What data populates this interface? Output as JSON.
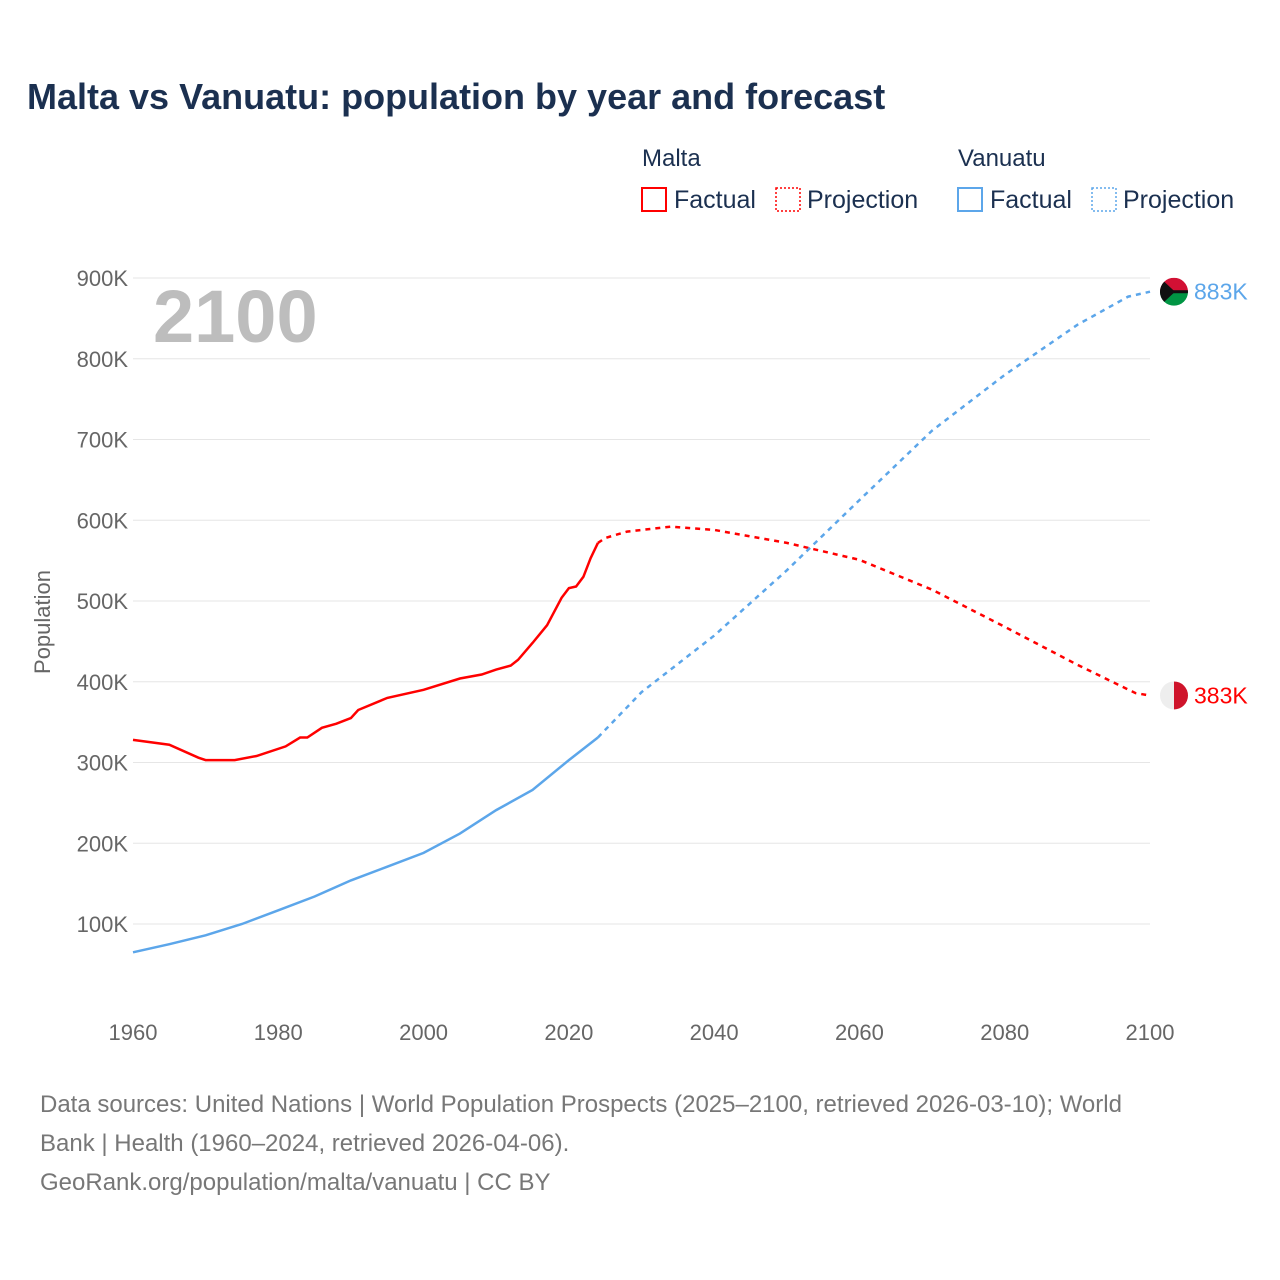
{
  "chart_data": {
    "type": "line",
    "title": "Malta vs Vanuatu: population by year and forecast",
    "ylabel": "Population",
    "xlabel": "",
    "xlim": [
      1960,
      2100
    ],
    "ylim": [
      0,
      900000
    ],
    "x_ticks": [
      "1960",
      "1980",
      "2000",
      "2020",
      "2040",
      "2060",
      "2080",
      "2100"
    ],
    "y_ticks": [
      "100K",
      "200K",
      "300K",
      "400K",
      "500K",
      "600K",
      "700K",
      "800K",
      "900K"
    ],
    "grid": true,
    "year_label": "2100",
    "legend": {
      "placement": "top-right",
      "groups": [
        {
          "name": "Malta",
          "items": [
            "Factual",
            "Projection"
          ]
        },
        {
          "name": "Vanuatu",
          "items": [
            "Factual",
            "Projection"
          ]
        }
      ]
    },
    "series": [
      {
        "name": "Malta",
        "color": "#ff0000",
        "end_label": "383K",
        "factual": [
          [
            1960,
            328000
          ],
          [
            1965,
            322000
          ],
          [
            1969,
            306000
          ],
          [
            1970,
            303000
          ],
          [
            1974,
            303000
          ],
          [
            1977,
            308000
          ],
          [
            1981,
            320000
          ],
          [
            1983,
            331000
          ],
          [
            1984,
            331000
          ],
          [
            1986,
            343000
          ],
          [
            1988,
            348000
          ],
          [
            1990,
            355000
          ],
          [
            1991,
            365000
          ],
          [
            1995,
            380000
          ],
          [
            2000,
            390000
          ],
          [
            2005,
            404000
          ],
          [
            2008,
            409000
          ],
          [
            2010,
            415000
          ],
          [
            2012,
            420000
          ],
          [
            2013,
            427000
          ],
          [
            2015,
            448000
          ],
          [
            2017,
            470000
          ],
          [
            2019,
            504000
          ],
          [
            2020,
            516000
          ],
          [
            2021,
            518000
          ],
          [
            2022,
            530000
          ],
          [
            2023,
            553000
          ],
          [
            2024,
            572000
          ]
        ],
        "projection": [
          [
            2024,
            572000
          ],
          [
            2025,
            578000
          ],
          [
            2028,
            586000
          ],
          [
            2034,
            592000
          ],
          [
            2040,
            588000
          ],
          [
            2050,
            572000
          ],
          [
            2060,
            551000
          ],
          [
            2070,
            514000
          ],
          [
            2080,
            468000
          ],
          [
            2090,
            421000
          ],
          [
            2098,
            386000
          ],
          [
            2100,
            383000
          ]
        ]
      },
      {
        "name": "Vanuatu",
        "color": "#5ca6ea",
        "end_label": "883K",
        "factual": [
          [
            1960,
            65000
          ],
          [
            1965,
            75000
          ],
          [
            1970,
            86000
          ],
          [
            1975,
            100000
          ],
          [
            1980,
            117000
          ],
          [
            1985,
            134000
          ],
          [
            1990,
            154000
          ],
          [
            1995,
            171000
          ],
          [
            2000,
            188000
          ],
          [
            2005,
            212000
          ],
          [
            2010,
            241000
          ],
          [
            2015,
            266000
          ],
          [
            2020,
            303000
          ],
          [
            2024,
            331000
          ]
        ],
        "projection": [
          [
            2024,
            331000
          ],
          [
            2030,
            387000
          ],
          [
            2040,
            457000
          ],
          [
            2050,
            538000
          ],
          [
            2060,
            625000
          ],
          [
            2070,
            711000
          ],
          [
            2080,
            780000
          ],
          [
            2090,
            842000
          ],
          [
            2097,
            877000
          ],
          [
            2100,
            883000
          ]
        ]
      }
    ]
  },
  "footer": {
    "line1": "Data sources: United Nations | World Population Prospects (2025–2100, retrieved 2026-03-10); World",
    "line2": "Bank | Health (1960–2024, retrieved 2026-04-06).",
    "line3": "GeoRank.org/population/malta/vanuatu | CC BY"
  }
}
